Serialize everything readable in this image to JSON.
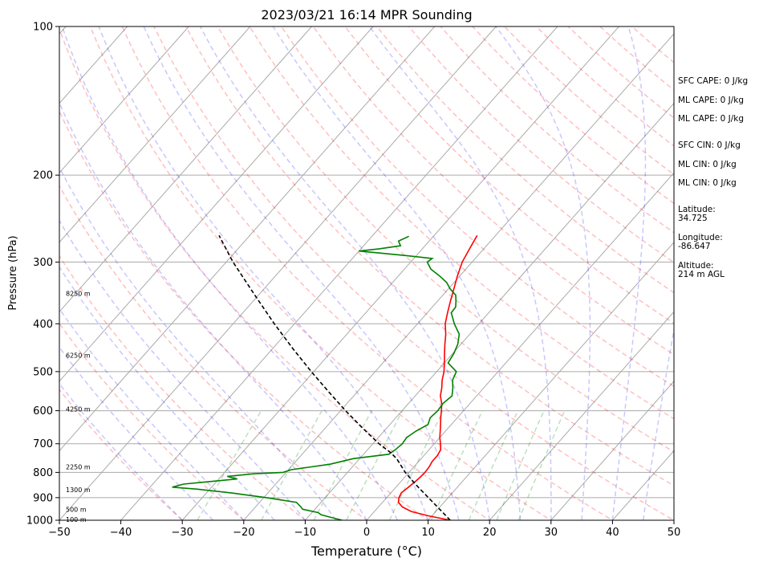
{
  "chart_data": {
    "type": "line",
    "subtype": "skew-t log-p",
    "title": "2023/03/21 16:14 MPR Sounding",
    "xlabel": "Temperature (°C)",
    "ylabel": "Pressure (hPa)",
    "xlim": [
      -50,
      50
    ],
    "ylim": [
      1000,
      100
    ],
    "y_scale": "log",
    "x_ticks": [
      "−50",
      "−40",
      "−30",
      "−20",
      "−10",
      "0",
      "10",
      "20",
      "30",
      "40",
      "50"
    ],
    "y_ticks": [
      {
        "p": 1000,
        "label": "1000"
      },
      {
        "p": 900,
        "label": "900"
      },
      {
        "p": 800,
        "label": "800"
      },
      {
        "p": 700,
        "label": "700"
      },
      {
        "p": 600,
        "label": "600"
      },
      {
        "p": 500,
        "label": "500"
      },
      {
        "p": 400,
        "label": "400"
      },
      {
        "p": 300,
        "label": "300"
      },
      {
        "p": 200,
        "label": "200"
      },
      {
        "p": 100,
        "label": "100"
      }
    ],
    "grid": true,
    "series": [
      {
        "color": "#ff0000",
        "points": [
          [
            1000,
            13.6
          ],
          [
            980,
            9.5
          ],
          [
            960,
            6.0
          ],
          [
            940,
            3.9
          ],
          [
            920,
            2.6
          ],
          [
            900,
            2.0
          ],
          [
            880,
            1.7
          ],
          [
            860,
            2.0
          ],
          [
            840,
            2.3
          ],
          [
            820,
            2.5
          ],
          [
            800,
            2.6
          ],
          [
            780,
            2.5
          ],
          [
            760,
            2.2
          ],
          [
            740,
            2.2
          ],
          [
            720,
            1.9
          ],
          [
            700,
            1.0
          ],
          [
            680,
            0.0
          ],
          [
            650,
            -1.3
          ],
          [
            620,
            -2.7
          ],
          [
            600,
            -3.6
          ],
          [
            580,
            -4.6
          ],
          [
            560,
            -5.9
          ],
          [
            540,
            -6.8
          ],
          [
            520,
            -7.9
          ],
          [
            500,
            -8.8
          ],
          [
            480,
            -10.0
          ],
          [
            460,
            -11.3
          ],
          [
            440,
            -12.6
          ],
          [
            420,
            -13.9
          ],
          [
            400,
            -15.5
          ],
          [
            380,
            -16.7
          ],
          [
            360,
            -17.9
          ],
          [
            340,
            -19.1
          ],
          [
            320,
            -20.4
          ],
          [
            300,
            -21.6
          ],
          [
            280,
            -22.4
          ],
          [
            265,
            -23.0
          ]
        ]
      },
      {
        "color": "#008000",
        "points": [
          [
            1000,
            -4.0
          ],
          [
            985,
            -6.5
          ],
          [
            975,
            -8.2
          ],
          [
            965,
            -9.0
          ],
          [
            950,
            -12.0
          ],
          [
            940,
            -12.6
          ],
          [
            920,
            -14.0
          ],
          [
            900,
            -19.5
          ],
          [
            880,
            -26.0
          ],
          [
            865,
            -32.0
          ],
          [
            857,
            -36.4
          ],
          [
            845,
            -35.0
          ],
          [
            825,
            -27.0
          ],
          [
            815,
            -29.0
          ],
          [
            805,
            -25.0
          ],
          [
            800,
            -20.5
          ],
          [
            790,
            -19.5
          ],
          [
            770,
            -14.0
          ],
          [
            750,
            -11.0
          ],
          [
            735,
            -5.9
          ],
          [
            720,
            -5.5
          ],
          [
            700,
            -5.2
          ],
          [
            680,
            -5.4
          ],
          [
            660,
            -4.8
          ],
          [
            640,
            -3.8
          ],
          [
            620,
            -4.4
          ],
          [
            600,
            -4.2
          ],
          [
            580,
            -4.4
          ],
          [
            560,
            -4.0
          ],
          [
            540,
            -5.0
          ],
          [
            520,
            -6.2
          ],
          [
            500,
            -6.8
          ],
          [
            480,
            -9.4
          ],
          [
            460,
            -9.8
          ],
          [
            440,
            -10.5
          ],
          [
            420,
            -11.7
          ],
          [
            400,
            -14.0
          ],
          [
            380,
            -16.1
          ],
          [
            370,
            -16.2
          ],
          [
            360,
            -17.0
          ],
          [
            350,
            -17.9
          ],
          [
            340,
            -19.7
          ],
          [
            330,
            -21.2
          ],
          [
            320,
            -23.3
          ],
          [
            310,
            -25.7
          ],
          [
            300,
            -27.3
          ],
          [
            295,
            -27.0
          ],
          [
            290,
            -33.0
          ],
          [
            285,
            -40.0
          ],
          [
            282,
            -37.0
          ],
          [
            278,
            -34.0
          ],
          [
            272,
            -35.0
          ],
          [
            266,
            -34.0
          ]
        ]
      },
      {
        "color": "#000000",
        "dashed": true,
        "points": [
          [
            1000,
            13.6
          ],
          [
            950,
            10.3
          ],
          [
            900,
            6.8
          ],
          [
            850,
            3.1
          ],
          [
            800,
            -0.6
          ],
          [
            750,
            -4.0
          ],
          [
            730,
            -5.8
          ],
          [
            700,
            -9.0
          ],
          [
            650,
            -14.0
          ],
          [
            600,
            -19.2
          ],
          [
            550,
            -24.6
          ],
          [
            500,
            -30.4
          ],
          [
            450,
            -36.6
          ],
          [
            400,
            -43.3
          ],
          [
            350,
            -50.6
          ],
          [
            300,
            -58.9
          ],
          [
            265,
            -65.0
          ]
        ]
      }
    ],
    "height_labels": [
      {
        "p": 996,
        "label": "100 m"
      },
      {
        "p": 950,
        "label": "500 m"
      },
      {
        "p": 867,
        "label": "1300 m"
      },
      {
        "p": 780,
        "label": "2250 m"
      },
      {
        "p": 595,
        "label": "4250 m"
      },
      {
        "p": 463,
        "label": "6250 m"
      },
      {
        "p": 347,
        "label": "8250 m"
      }
    ]
  },
  "side_panel": [
    "SFC CAPE: 0 J/kg",
    "ML CAPE: 0 J/kg",
    "ML CAPE: 0 J/kg",
    "SFC CIN: 0 J/kg",
    "ML CIN: 0 J/kg",
    "ML CIN: 0 J/kg",
    "Latitude:",
    "34.725",
    "Longitude:",
    "-86.647",
    "Altitude:",
    "214 m AGL"
  ]
}
